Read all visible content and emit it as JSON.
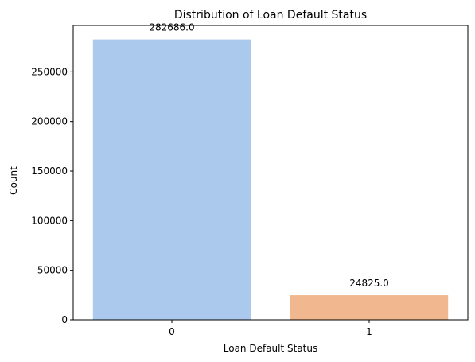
{
  "chart_data": {
    "type": "bar",
    "title": "Distribution of Loan Default Status",
    "xlabel": "Loan Default Status",
    "ylabel": "Count",
    "categories": [
      "0",
      "1"
    ],
    "values": [
      282686,
      24825
    ],
    "data_labels": [
      "282686.0",
      "24825.0"
    ],
    "colors": [
      "#abc9ed",
      "#f1b890"
    ],
    "ylim": [
      0,
      296820
    ],
    "yticks": [
      0,
      50000,
      100000,
      150000,
      200000,
      250000
    ],
    "ytick_labels": [
      "0",
      "50000",
      "100000",
      "150000",
      "200000",
      "250000"
    ],
    "grid": false,
    "legend": "none"
  }
}
